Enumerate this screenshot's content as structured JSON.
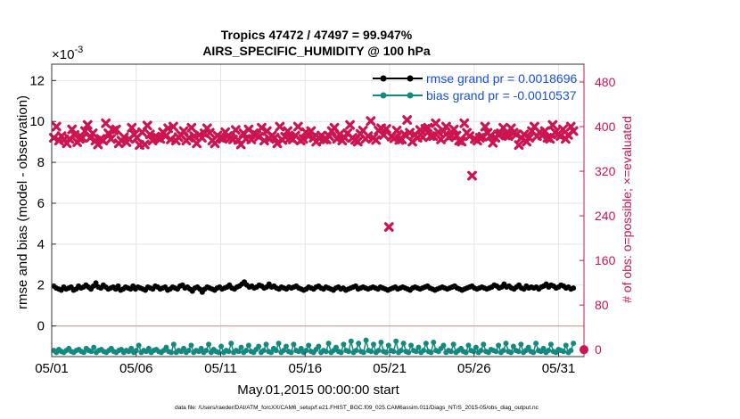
{
  "chart_data": {
    "type": "line",
    "title": "Tropics 47472 / 47497 = 99.947%",
    "subtitle": "AIRS_SPECIFIC_HUMIDITY @ 100 hPa",
    "xlabel": "May.01,2015 00:00:00 start",
    "ylabel": "rmse and bias (model - observation)",
    "y2label": "# of obs: o=possible; ×=evaluated",
    "y_exponent": "×10",
    "y_exponent_power": "-3",
    "x_ticks": [
      "05/01",
      "05/06",
      "05/11",
      "05/16",
      "05/21",
      "05/26",
      "05/31"
    ],
    "y_ticks": [
      "0",
      "2",
      "4",
      "6",
      "8",
      "10",
      "12"
    ],
    "y2_ticks": [
      "0",
      "80",
      "160",
      "240",
      "320",
      "400",
      "480"
    ],
    "xlim": [
      0,
      31.5
    ],
    "ylim": [
      -1.5,
      12.8
    ],
    "y2lim": [
      -12.5,
      512
    ],
    "grid": true,
    "legend_position": "top-right",
    "legend": [
      "rmse grand pr = 0.0018696",
      "bias grand pr = -0.0010537"
    ],
    "series": [
      {
        "name": "rmse",
        "color": "#000000",
        "values": [
          1.95,
          1.85,
          1.8,
          1.75,
          1.9,
          1.8,
          1.85,
          1.9,
          1.75,
          1.8,
          1.95,
          1.85,
          1.9,
          2.0,
          1.9,
          1.8,
          1.95,
          2.1,
          1.9,
          1.85,
          2.0,
          1.9,
          1.8,
          1.85,
          1.9,
          1.8,
          1.95,
          1.75,
          1.8,
          1.9,
          1.85,
          1.8,
          1.95,
          1.8,
          1.9,
          1.85,
          1.8,
          1.75,
          1.9,
          1.85,
          1.8,
          1.95,
          1.9,
          1.8,
          1.85,
          1.9,
          1.75,
          1.8,
          1.9,
          1.85,
          1.8,
          1.95,
          2.0,
          1.85,
          1.9,
          1.8,
          1.7,
          1.85,
          1.9,
          1.8,
          1.65,
          1.8,
          1.9,
          1.85,
          1.8,
          1.75,
          1.85,
          1.9,
          1.8,
          1.85,
          1.9,
          2.0,
          1.85,
          1.8,
          1.9,
          1.95,
          2.05,
          2.15,
          2.0,
          1.9,
          1.95,
          1.85,
          1.9,
          2.0,
          1.95,
          1.85,
          1.9,
          2.05,
          1.9,
          1.95,
          1.85,
          1.8,
          1.9,
          1.85,
          1.8,
          1.9,
          1.85,
          1.9,
          1.95,
          1.85,
          1.8,
          1.75,
          1.8,
          1.9,
          1.85,
          1.8,
          1.9,
          1.95,
          1.85,
          1.8,
          1.9,
          1.85,
          1.8,
          1.75,
          1.85,
          1.9,
          1.8,
          1.85,
          1.75,
          1.8,
          1.85,
          1.9,
          1.95,
          1.8,
          1.85,
          1.9,
          1.85,
          1.8,
          1.85,
          1.9,
          1.85,
          1.8,
          1.9,
          1.85,
          1.8,
          1.75,
          1.8,
          1.85,
          1.9,
          1.8,
          1.85,
          1.9,
          1.85,
          1.8,
          1.75,
          1.85,
          1.9,
          1.85,
          1.8,
          1.85,
          1.9,
          1.95,
          1.85,
          1.8,
          1.75,
          1.8,
          1.85,
          1.9,
          1.85,
          1.8,
          1.85,
          1.9,
          1.95,
          1.85,
          1.8,
          1.75,
          1.8,
          1.85,
          1.9,
          1.95,
          1.85,
          1.8,
          1.85,
          1.9,
          1.85,
          1.8,
          1.85,
          1.9,
          2.0,
          1.95,
          1.85,
          1.9,
          2.05,
          1.9,
          1.95,
          1.85,
          1.8,
          1.9,
          2.0,
          1.85,
          1.8,
          1.95,
          1.85,
          1.9,
          1.85,
          1.9,
          1.8,
          1.9,
          1.95,
          2.05,
          1.9,
          2.0,
          1.95,
          1.85,
          1.9,
          2.0,
          1.95,
          1.85,
          1.9,
          1.8,
          1.85
        ]
      },
      {
        "name": "bias",
        "color": "#138a80",
        "values": [
          -1.2,
          -1.3,
          -1.15,
          -1.25,
          -1.3,
          -1.2,
          -1.1,
          -1.25,
          -1.3,
          -1.2,
          -1.15,
          -1.25,
          -1.3,
          -1.1,
          -1.2,
          -1.25,
          -1.05,
          -1.3,
          -1.2,
          -1.15,
          -1.25,
          -1.3,
          -1.2,
          -1.1,
          -1.25,
          -1.3,
          -1.2,
          -1.15,
          -1.3,
          -1.2,
          -1.25,
          -1.1,
          -1.3,
          -1.2,
          -0.95,
          -1.3,
          -1.2,
          -1.25,
          -1.1,
          -1.3,
          -1.2,
          -1.15,
          -1.25,
          -1.3,
          -1.2,
          -1.05,
          -1.25,
          -1.3,
          -0.9,
          -1.3,
          -1.2,
          -1.25,
          -1.1,
          -1.3,
          -1.2,
          -0.95,
          -1.3,
          -1.2,
          -1.25,
          -1.1,
          -1.3,
          -1.2,
          -0.9,
          -1.3,
          -1.15,
          -1.25,
          -1.3,
          -1.0,
          -1.3,
          -1.2,
          -1.25,
          -0.85,
          -1.3,
          -1.2,
          -1.25,
          -1.05,
          -1.3,
          -1.2,
          -0.95,
          -1.25,
          -1.3,
          -1.15,
          -1.0,
          -1.3,
          -1.2,
          -0.9,
          -1.25,
          -1.3,
          -1.1,
          -1.2,
          -0.85,
          -1.3,
          -1.2,
          -1.0,
          -1.25,
          -1.3,
          -0.9,
          -1.2,
          -1.25,
          -1.1,
          -1.3,
          -1.2,
          -0.95,
          -1.25,
          -1.3,
          -1.15,
          -1.0,
          -1.3,
          -1.2,
          -1.25,
          -0.85,
          -1.3,
          -1.2,
          -1.05,
          -1.25,
          -1.3,
          -0.9,
          -1.2,
          -1.25,
          -0.75,
          -1.3,
          -1.2,
          -0.85,
          -1.25,
          -1.3,
          -0.7,
          -1.2,
          -1.25,
          -0.9,
          -1.3,
          -1.2,
          -0.8,
          -1.25,
          -1.3,
          -0.95,
          -1.2,
          -1.25,
          -0.75,
          -1.3,
          -1.2,
          -0.85,
          -1.25,
          -1.3,
          -0.95,
          -1.2,
          -1.25,
          -1.05,
          -1.3,
          -1.2,
          -0.85,
          -1.25,
          -1.3,
          -0.8,
          -1.2,
          -1.25,
          -1.1,
          -0.95,
          -1.3,
          -1.2,
          -1.25,
          -0.9,
          -1.3,
          -1.2,
          -1.1,
          -1.25,
          -1.3,
          -0.95,
          -1.2,
          -1.25,
          -1.05,
          -1.3,
          -1.2,
          -0.9,
          -1.25,
          -1.3,
          -1.15,
          -1.2,
          -1.25,
          -0.95,
          -1.3,
          -1.2,
          -0.85,
          -1.25,
          -1.3,
          -1.0,
          -1.2,
          -1.25,
          -0.9,
          -1.3,
          -1.2,
          -1.05,
          -1.25,
          -1.3,
          -0.85,
          -1.2,
          -1.25,
          -1.1,
          -1.3,
          -1.2,
          -0.9,
          -1.25,
          -1.3,
          -1.15,
          -1.2,
          -1.25,
          -0.95,
          -1.3,
          -1.2,
          -0.85
        ]
      },
      {
        "name": "obs_evaluated",
        "color": "#cc1450",
        "axis": "right",
        "values": [
          380,
          400,
          375,
          383,
          377,
          370,
          378,
          395,
          385,
          372,
          378,
          380,
          392,
          403,
          380,
          388,
          375,
          368,
          378,
          375,
          406,
          388,
          378,
          393,
          395,
          370,
          375,
          381,
          372,
          378,
          398,
          386,
          380,
          367,
          390,
          368,
          402,
          386,
          375,
          382,
          380,
          378,
          390,
          383,
          397,
          377,
          400,
          375,
          381,
          385,
          392,
          375,
          380,
          398,
          383,
          370,
          385,
          380,
          388,
          397,
          389,
          375,
          370,
          384,
          380,
          378,
          390,
          383,
          380,
          377,
          394,
          376,
          368,
          388,
          378,
          395,
          377,
          388,
          385,
          382,
          398,
          375,
          392,
          378,
          384,
          380,
          370,
          400,
          376,
          382,
          392,
          380,
          377,
          384,
          400,
          375,
          378,
          390,
          383,
          392,
          380,
          373,
          380,
          384,
          377,
          377,
          383,
          392,
          398,
          378,
          386,
          375,
          380,
          388,
          403,
          380,
          376,
          373,
          387,
          393,
          378,
          383,
          410,
          380,
          376,
          393,
          397,
          385,
          396,
          220,
          382,
          379,
          393,
          376,
          377,
          386,
          412,
          389,
          373,
          386,
          380,
          394,
          381,
          396,
          398,
          383,
          383,
          406,
          390,
          377,
          392,
          400,
          381,
          384,
          395,
          384,
          375,
          373,
          406,
          389,
          383,
          312,
          378,
          375,
          380,
          382,
          400,
          389,
          383,
          371,
          380,
          386,
          388,
          398,
          384,
          383,
          397,
          389,
          386,
          367,
          380,
          386,
          373,
          380,
          392,
          400,
          383,
          390,
          384,
          392,
          380,
          378,
          403,
          390,
          386,
          383,
          395,
          378,
          385,
          400,
          392
        ]
      },
      {
        "name": "obs_possible",
        "color": "#cc1450",
        "axis": "right",
        "values": [
          0
        ]
      }
    ]
  },
  "footer": "data file: /Users/raeder/DAI/ATM_forcXX/CAM6_setup/f.e21.FHIST_BGC.f09_025.CAM6assim.011/Diags_NTrS_2015-05/obs_diag_output.nc"
}
